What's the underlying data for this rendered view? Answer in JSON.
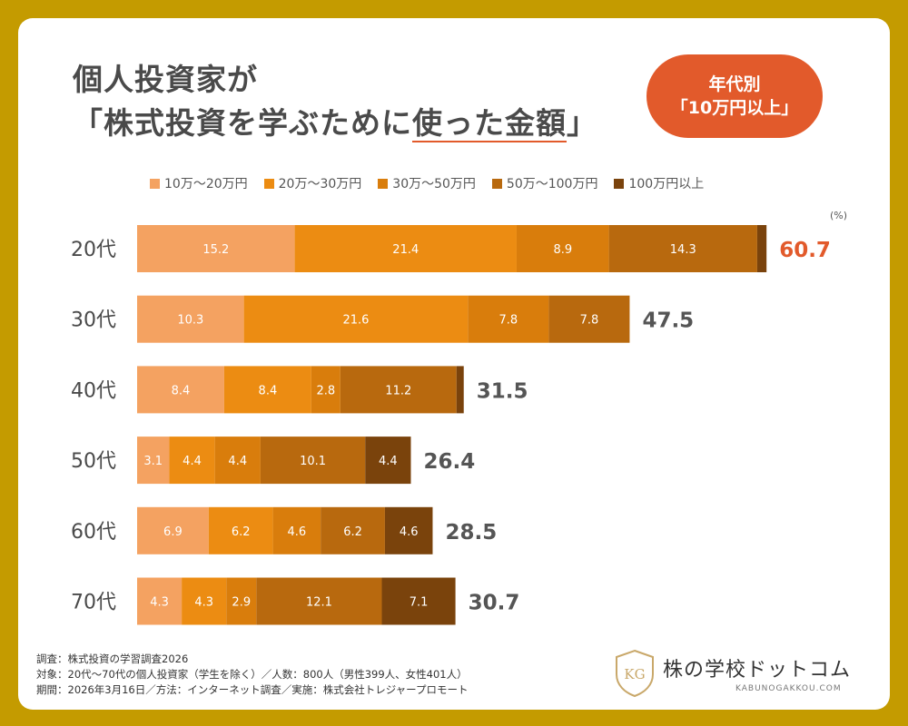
{
  "title": {
    "line1": "個人投資家が",
    "line2_a": "「株式投資を学ぶために",
    "line2_b": "使った金額",
    "line2_c": "」"
  },
  "badge": {
    "line1": "年代別",
    "line2": "「10万円以上」"
  },
  "unit": "(%)",
  "colors": {
    "background": "#c49b00",
    "highlight": "#e25a2b",
    "total_text": "#555555"
  },
  "chart_data": {
    "type": "bar",
    "orientation": "horizontal",
    "stacked": true,
    "categories": [
      "20代",
      "30代",
      "40代",
      "50代",
      "60代",
      "70代"
    ],
    "series": [
      {
        "name": "10万〜20万円",
        "color": "#f4a261",
        "values": [
          15.2,
          10.3,
          8.4,
          3.1,
          6.9,
          4.3
        ]
      },
      {
        "name": "20万〜30万円",
        "color": "#ec8c12",
        "values": [
          21.4,
          21.6,
          8.4,
          4.4,
          6.2,
          4.3
        ]
      },
      {
        "name": "30万〜50万円",
        "color": "#d97d0c",
        "values": [
          8.9,
          7.8,
          2.8,
          4.4,
          4.6,
          2.9
        ]
      },
      {
        "name": "50万〜100万円",
        "color": "#b8690e",
        "values": [
          14.3,
          7.8,
          11.2,
          10.1,
          6.2,
          12.1
        ]
      },
      {
        "name": "100万円以上",
        "color": "#7a430c",
        "values": [
          0.9,
          0,
          0.7,
          4.4,
          4.6,
          7.1
        ]
      }
    ],
    "totals": [
      "60.7",
      "47.5",
      "31.5",
      "26.4",
      "28.5",
      "30.7"
    ],
    "highlight_category": "20代",
    "xlim": [
      0,
      61
    ],
    "grid": false,
    "legend_position": "top"
  },
  "footer": {
    "line1": "調査：株式投資の学習調査2026",
    "line2": "対象：20代〜70代の個人投資家（学生を除く）／人数：800人（男性399人、女性401人）",
    "line3": "期間：2026年3月16日／方法：インターネット調査／実施：株式会社トレジャープロモート"
  },
  "logo": {
    "name": "株の学校ドットコム",
    "sub": "KABUNOGAKKOU.COM",
    "emblem_text": "KG"
  }
}
